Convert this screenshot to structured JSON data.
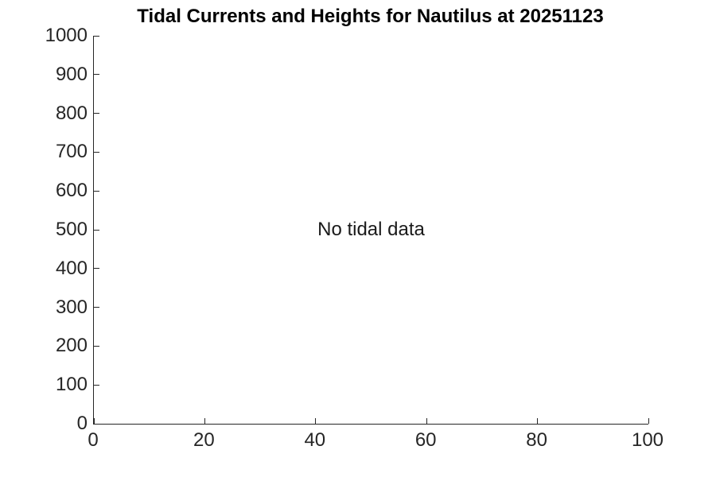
{
  "figure": {
    "background": "#ffffff"
  },
  "chart_data": {
    "type": "line",
    "title": "Tidal Currents and Heights for Nautilus at 20251123",
    "xlabel": "",
    "ylabel": "",
    "xlim": [
      0,
      100
    ],
    "ylim": [
      0,
      1000
    ],
    "xticks": [
      0,
      20,
      40,
      60,
      80,
      100
    ],
    "yticks": [
      0,
      100,
      200,
      300,
      400,
      500,
      600,
      700,
      800,
      900,
      1000
    ],
    "grid": false,
    "legend": null,
    "series": [],
    "annotations": [
      {
        "text": "No tidal data",
        "x": 50,
        "y": 500
      }
    ],
    "style": {
      "axis_color": "#262626",
      "tick_label_color": "#262626",
      "title_color": "#000000",
      "annotation_color": "#1a1a1a",
      "background": "#ffffff",
      "tick_direction": "in",
      "spines": [
        "left",
        "bottom"
      ]
    }
  }
}
